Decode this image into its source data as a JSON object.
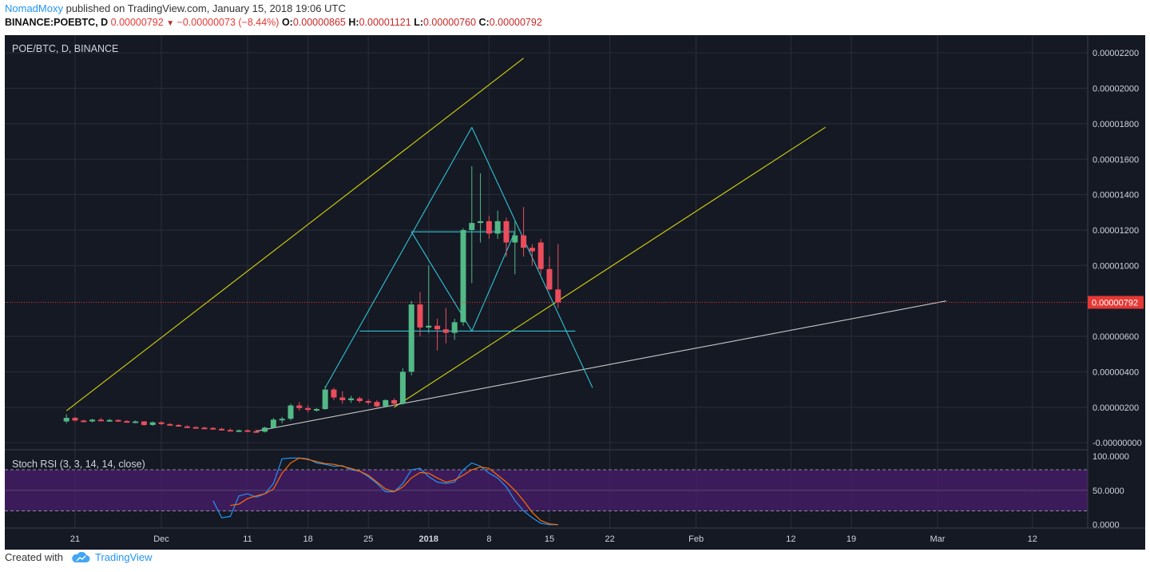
{
  "header": {
    "author": "NomadMoxy",
    "published": "published on TradingView.com, January 15, 2018 19:06 UTC",
    "symbol": "BINANCE:POEBTC, D",
    "last": "0.00000792",
    "change": "−0.00000073 (−8.44%)",
    "o_label": "O:",
    "o": "0.00000865",
    "h_label": "H:",
    "h": "0.00001121",
    "l_label": "L:",
    "l": "0.00000760",
    "c_label": "C:",
    "c": "0.00000792"
  },
  "footer": {
    "created_with": "Created with",
    "brand": "TradingView"
  },
  "colors": {
    "background": "#151924",
    "grid": "#2a2e39",
    "bull": "#53b987",
    "bear": "#eb4d5c",
    "trend_yellow": "#d4d40a",
    "pattern_cyan": "#2fc4d4",
    "trend_white": "#c8c8c8",
    "rsi_k": "#2196f3",
    "rsi_d": "#ff6d00",
    "rsi_band": "#4a1c6e",
    "price_label": "#e53935"
  },
  "chart_data": [
    {
      "type": "candlestick",
      "title": "POE/BTC, D, BINANCE",
      "x_ticks": [
        "21",
        "Dec",
        "11",
        "18",
        "25",
        "2018",
        "8",
        "15",
        "22",
        "Feb",
        "12",
        "19",
        "Mar",
        "12"
      ],
      "y_ticks": [
        "0.00002200",
        "0.00002000",
        "0.00001800",
        "0.00001600",
        "0.00001400",
        "0.00001200",
        "0.00001000",
        "0.00000600",
        "0.00000400",
        "0.00000200",
        "-0.00000000"
      ],
      "ylim": [
        -4e-07,
        2.3e-05
      ],
      "last_price_label": "0.00000792",
      "last_price": 7.92e-06,
      "candles": [
        {
          "d": "2017-11-20",
          "o": 1.2e-06,
          "h": 1.6e-06,
          "l": 1.1e-06,
          "c": 1.4e-06
        },
        {
          "d": "2017-11-21",
          "o": 1.4e-06,
          "h": 1.45e-06,
          "l": 1.2e-06,
          "c": 1.25e-06
        },
        {
          "d": "2017-11-22",
          "o": 1.25e-06,
          "h": 1.3e-06,
          "l": 1.15e-06,
          "c": 1.2e-06
        },
        {
          "d": "2017-11-23",
          "o": 1.2e-06,
          "h": 1.35e-06,
          "l": 1.15e-06,
          "c": 1.3e-06
        },
        {
          "d": "2017-11-24",
          "o": 1.3e-06,
          "h": 1.4e-06,
          "l": 1.2e-06,
          "c": 1.25e-06
        },
        {
          "d": "2017-11-25",
          "o": 1.25e-06,
          "h": 1.35e-06,
          "l": 1.18e-06,
          "c": 1.28e-06
        },
        {
          "d": "2017-11-26",
          "o": 1.28e-06,
          "h": 1.32e-06,
          "l": 1.18e-06,
          "c": 1.22e-06
        },
        {
          "d": "2017-11-27",
          "o": 1.22e-06,
          "h": 1.28e-06,
          "l": 1.12e-06,
          "c": 1.15e-06
        },
        {
          "d": "2017-11-28",
          "o": 1.15e-06,
          "h": 1.25e-06,
          "l": 1.1e-06,
          "c": 1.2e-06
        },
        {
          "d": "2017-11-29",
          "o": 1.2e-06,
          "h": 1.22e-06,
          "l": 9.5e-07,
          "c": 1e-06
        },
        {
          "d": "2017-11-30",
          "o": 1e-06,
          "h": 1.2e-06,
          "l": 9.5e-07,
          "c": 1.15e-06
        },
        {
          "d": "2017-12-01",
          "o": 1.15e-06,
          "h": 1.2e-06,
          "l": 1e-06,
          "c": 1.05e-06
        },
        {
          "d": "2017-12-02",
          "o": 1.05e-06,
          "h": 1.1e-06,
          "l": 9.5e-07,
          "c": 1e-06
        },
        {
          "d": "2017-12-03",
          "o": 1e-06,
          "h": 1.05e-06,
          "l": 9e-07,
          "c": 9.2e-07
        },
        {
          "d": "2017-12-04",
          "o": 9.2e-07,
          "h": 9.8e-07,
          "l": 8.5e-07,
          "c": 8.8e-07
        },
        {
          "d": "2017-12-05",
          "o": 8.8e-07,
          "h": 9.2e-07,
          "l": 8.2e-07,
          "c": 8.5e-07
        },
        {
          "d": "2017-12-06",
          "o": 8.5e-07,
          "h": 9e-07,
          "l": 8e-07,
          "c": 8.3e-07
        },
        {
          "d": "2017-12-07",
          "o": 8.3e-07,
          "h": 8.8e-07,
          "l": 7.5e-07,
          "c": 7.8e-07
        },
        {
          "d": "2017-12-08",
          "o": 7.8e-07,
          "h": 8.5e-07,
          "l": 7e-07,
          "c": 7.2e-07
        },
        {
          "d": "2017-12-09",
          "o": 7.2e-07,
          "h": 8e-07,
          "l": 6.5e-07,
          "c": 6.8e-07
        },
        {
          "d": "2017-12-10",
          "o": 6.8e-07,
          "h": 7.4e-07,
          "l": 6e-07,
          "c": 7e-07
        },
        {
          "d": "2017-12-11",
          "o": 7e-07,
          "h": 7.5e-07,
          "l": 6e-07,
          "c": 6.5e-07
        },
        {
          "d": "2017-12-12",
          "o": 6.5e-07,
          "h": 7.5e-07,
          "l": 5.8e-07,
          "c": 6.2e-07
        },
        {
          "d": "2017-12-13",
          "o": 6.2e-07,
          "h": 9e-07,
          "l": 5.8e-07,
          "c": 8.5e-07
        },
        {
          "d": "2017-12-14",
          "o": 8.5e-07,
          "h": 1.4e-06,
          "l": 8e-07,
          "c": 1.3e-06
        },
        {
          "d": "2017-12-15",
          "o": 1.3e-06,
          "h": 1.45e-06,
          "l": 1.1e-06,
          "c": 1.35e-06
        },
        {
          "d": "2017-12-16",
          "o": 1.35e-06,
          "h": 2.2e-06,
          "l": 1.25e-06,
          "c": 2.1e-06
        },
        {
          "d": "2017-12-17",
          "o": 2.1e-06,
          "h": 2.3e-06,
          "l": 1.8e-06,
          "c": 1.95e-06
        },
        {
          "d": "2017-12-18",
          "o": 1.95e-06,
          "h": 2.1e-06,
          "l": 1.7e-06,
          "c": 1.85e-06
        },
        {
          "d": "2017-12-19",
          "o": 1.85e-06,
          "h": 1.95e-06,
          "l": 1.75e-06,
          "c": 1.9e-06
        },
        {
          "d": "2017-12-20",
          "o": 1.9e-06,
          "h": 3.2e-06,
          "l": 1.85e-06,
          "c": 3e-06
        },
        {
          "d": "2017-12-21",
          "o": 3e-06,
          "h": 3.1e-06,
          "l": 2.4e-06,
          "c": 2.55e-06
        },
        {
          "d": "2017-12-22",
          "o": 2.55e-06,
          "h": 2.9e-06,
          "l": 2.2e-06,
          "c": 2.4e-06
        },
        {
          "d": "2017-12-23",
          "o": 2.4e-06,
          "h": 2.65e-06,
          "l": 2.25e-06,
          "c": 2.5e-06
        },
        {
          "d": "2017-12-24",
          "o": 2.5e-06,
          "h": 2.6e-06,
          "l": 2.25e-06,
          "c": 2.35e-06
        },
        {
          "d": "2017-12-25",
          "o": 2.35e-06,
          "h": 2.45e-06,
          "l": 2.15e-06,
          "c": 2.3e-06
        },
        {
          "d": "2017-12-26",
          "o": 2.3e-06,
          "h": 2.4e-06,
          "l": 2e-06,
          "c": 2.05e-06
        },
        {
          "d": "2017-12-27",
          "o": 2.05e-06,
          "h": 2.45e-06,
          "l": 2e-06,
          "c": 2.4e-06
        },
        {
          "d": "2017-12-28",
          "o": 2.4e-06,
          "h": 2.5e-06,
          "l": 2.1e-06,
          "c": 2.2e-06
        },
        {
          "d": "2017-12-29",
          "o": 2.2e-06,
          "h": 4.2e-06,
          "l": 2.15e-06,
          "c": 4e-06
        },
        {
          "d": "2017-12-30",
          "o": 4e-06,
          "h": 8e-06,
          "l": 3.8e-06,
          "c": 7.8e-06
        },
        {
          "d": "2017-12-31",
          "o": 7.8e-06,
          "h": 8.5e-06,
          "l": 6e-06,
          "c": 6.5e-06
        },
        {
          "d": "2018-01-01",
          "o": 6.5e-06,
          "h": 1e-05,
          "l": 6.2e-06,
          "c": 6.6e-06
        },
        {
          "d": "2018-01-02",
          "o": 6.6e-06,
          "h": 7e-06,
          "l": 5.2e-06,
          "c": 6.4e-06
        },
        {
          "d": "2018-01-03",
          "o": 6.4e-06,
          "h": 7.6e-06,
          "l": 5.6e-06,
          "c": 6.2e-06
        },
        {
          "d": "2018-01-04",
          "o": 6.2e-06,
          "h": 7e-06,
          "l": 5.8e-06,
          "c": 6.8e-06
        },
        {
          "d": "2018-01-05",
          "o": 6.8e-06,
          "h": 1.21e-05,
          "l": 6.6e-06,
          "c": 1.2e-05
        },
        {
          "d": "2018-01-06",
          "o": 1.2e-05,
          "h": 1.56e-05,
          "l": 9e-06,
          "c": 1.24e-05
        },
        {
          "d": "2018-01-07",
          "o": 1.24e-05,
          "h": 1.52e-05,
          "l": 1.13e-05,
          "c": 1.25e-05
        },
        {
          "d": "2018-01-08",
          "o": 1.25e-05,
          "h": 1.28e-05,
          "l": 1.15e-05,
          "c": 1.18e-05
        },
        {
          "d": "2018-01-09",
          "o": 1.18e-05,
          "h": 1.31e-05,
          "l": 1.15e-05,
          "c": 1.25e-05
        },
        {
          "d": "2018-01-10",
          "o": 1.25e-05,
          "h": 1.27e-05,
          "l": 1.05e-05,
          "c": 1.13e-05
        },
        {
          "d": "2018-01-11",
          "o": 1.13e-05,
          "h": 1.25e-05,
          "l": 9.5e-06,
          "c": 1.17e-05
        },
        {
          "d": "2018-01-12",
          "o": 1.17e-05,
          "h": 1.33e-05,
          "l": 1.05e-05,
          "c": 1.1e-05
        },
        {
          "d": "2018-01-13",
          "o": 1.1e-05,
          "h": 1.12e-05,
          "l": 1e-05,
          "c": 1.08e-05
        },
        {
          "d": "2018-01-14",
          "o": 1.13e-05,
          "h": 1.15e-05,
          "l": 9.5e-06,
          "c": 9.8e-06
        },
        {
          "d": "2018-01-15",
          "o": 9.8e-06,
          "h": 1.05e-05,
          "l": 8.6e-06,
          "c": 8.65e-06
        },
        {
          "d": "2018-01-16",
          "o": 8.65e-06,
          "h": 1.121e-05,
          "l": 7.6e-06,
          "c": 7.92e-06
        }
      ],
      "drawings": [
        {
          "name": "upper-channel-line",
          "color": "yellow",
          "p1": [
            "2017-11-20",
            1.8e-06
          ],
          "p2": [
            "2018-01-12",
            2.17e-05
          ]
        },
        {
          "name": "lower-channel-line",
          "color": "yellow",
          "p1": [
            "2017-12-28",
            2e-06
          ],
          "p2": [
            "2018-02-16",
            1.78e-05
          ]
        },
        {
          "name": "support-line",
          "color": "white",
          "p1": [
            "2017-12-12",
            6.5e-07
          ],
          "p2": [
            "2018-03-02",
            8e-06
          ]
        },
        {
          "name": "triangle-left-side",
          "color": "cyan",
          "p1": [
            "2017-12-20",
            3.1e-06
          ],
          "p2": [
            "2018-01-06",
            1.78e-05
          ]
        },
        {
          "name": "triangle-right-side",
          "color": "cyan",
          "p1": [
            "2018-01-06",
            1.78e-05
          ],
          "p2": [
            "2018-01-20",
            3.1e-06
          ]
        },
        {
          "name": "inner-triangle-left",
          "color": "cyan",
          "p1": [
            "2017-12-30",
            1.19e-05
          ],
          "p2": [
            "2018-01-06",
            6.3e-06
          ]
        },
        {
          "name": "inner-triangle-right",
          "color": "cyan",
          "p1": [
            "2018-01-06",
            6.3e-06
          ],
          "p2": [
            "2018-01-11",
            1.19e-05
          ]
        },
        {
          "name": "horizontal-top",
          "color": "cyan",
          "p1": [
            "2017-12-30",
            1.19e-05
          ],
          "p2": [
            "2018-01-11",
            1.19e-05
          ]
        },
        {
          "name": "horizontal-base",
          "color": "cyan",
          "p1": [
            "2017-12-24",
            6.3e-06
          ],
          "p2": [
            "2018-01-18",
            6.3e-06
          ]
        }
      ]
    },
    {
      "type": "line",
      "title": "Stoch RSI (3, 3, 14, 14, close)",
      "y_ticks": [
        "100.0000",
        "50.0000",
        "0.0000"
      ],
      "ylim": [
        -5,
        108
      ],
      "band": [
        20,
        80
      ],
      "series": [
        {
          "name": "K",
          "values": [
            [
              "2017-12-07",
              35
            ],
            [
              "2017-12-08",
              10
            ],
            [
              "2017-12-09",
              12
            ],
            [
              "2017-12-10",
              42
            ],
            [
              "2017-12-11",
              45
            ],
            [
              "2017-12-12",
              40
            ],
            [
              "2017-12-13",
              45
            ],
            [
              "2017-12-14",
              60
            ],
            [
              "2017-12-15",
              96
            ],
            [
              "2017-12-16",
              97
            ],
            [
              "2017-12-17",
              97
            ],
            [
              "2017-12-18",
              96
            ],
            [
              "2017-12-19",
              90
            ],
            [
              "2017-12-20",
              88
            ],
            [
              "2017-12-21",
              85
            ],
            [
              "2017-12-22",
              86
            ],
            [
              "2017-12-23",
              80
            ],
            [
              "2017-12-24",
              78
            ],
            [
              "2017-12-25",
              70
            ],
            [
              "2017-12-26",
              60
            ],
            [
              "2017-12-27",
              48
            ],
            [
              "2017-12-28",
              48
            ],
            [
              "2017-12-29",
              60
            ],
            [
              "2017-12-30",
              80
            ],
            [
              "2017-12-31",
              82
            ],
            [
              "2018-01-01",
              70
            ],
            [
              "2018-01-02",
              62
            ],
            [
              "2018-01-03",
              60
            ],
            [
              "2018-01-04",
              62
            ],
            [
              "2018-01-05",
              80
            ],
            [
              "2018-01-06",
              90
            ],
            [
              "2018-01-07",
              85
            ],
            [
              "2018-01-08",
              75
            ],
            [
              "2018-01-09",
              68
            ],
            [
              "2018-01-10",
              55
            ],
            [
              "2018-01-11",
              35
            ],
            [
              "2018-01-12",
              20
            ],
            [
              "2018-01-13",
              10
            ],
            [
              "2018-01-14",
              2
            ],
            [
              "2018-01-15",
              0
            ],
            [
              "2018-01-16",
              0
            ]
          ]
        },
        {
          "name": "D",
          "values": [
            [
              "2017-12-09",
              28
            ],
            [
              "2017-12-10",
              30
            ],
            [
              "2017-12-11",
              38
            ],
            [
              "2017-12-12",
              42
            ],
            [
              "2017-12-13",
              45
            ],
            [
              "2017-12-14",
              52
            ],
            [
              "2017-12-15",
              75
            ],
            [
              "2017-12-16",
              90
            ],
            [
              "2017-12-17",
              97
            ],
            [
              "2017-12-18",
              95
            ],
            [
              "2017-12-19",
              92
            ],
            [
              "2017-12-20",
              89
            ],
            [
              "2017-12-21",
              88
            ],
            [
              "2017-12-22",
              85
            ],
            [
              "2017-12-23",
              82
            ],
            [
              "2017-12-24",
              78
            ],
            [
              "2017-12-25",
              72
            ],
            [
              "2017-12-26",
              62
            ],
            [
              "2017-12-27",
              52
            ],
            [
              "2017-12-28",
              48
            ],
            [
              "2017-12-29",
              55
            ],
            [
              "2017-12-30",
              68
            ],
            [
              "2017-12-31",
              76
            ],
            [
              "2018-01-01",
              75
            ],
            [
              "2018-01-02",
              68
            ],
            [
              "2018-01-03",
              62
            ],
            [
              "2018-01-04",
              65
            ],
            [
              "2018-01-05",
              72
            ],
            [
              "2018-01-06",
              80
            ],
            [
              "2018-01-07",
              84
            ],
            [
              "2018-01-08",
              82
            ],
            [
              "2018-01-09",
              72
            ],
            [
              "2018-01-10",
              62
            ],
            [
              "2018-01-11",
              50
            ],
            [
              "2018-01-12",
              35
            ],
            [
              "2018-01-13",
              18
            ],
            [
              "2018-01-14",
              6
            ],
            [
              "2018-01-15",
              1
            ],
            [
              "2018-01-16",
              0
            ]
          ]
        }
      ]
    }
  ]
}
